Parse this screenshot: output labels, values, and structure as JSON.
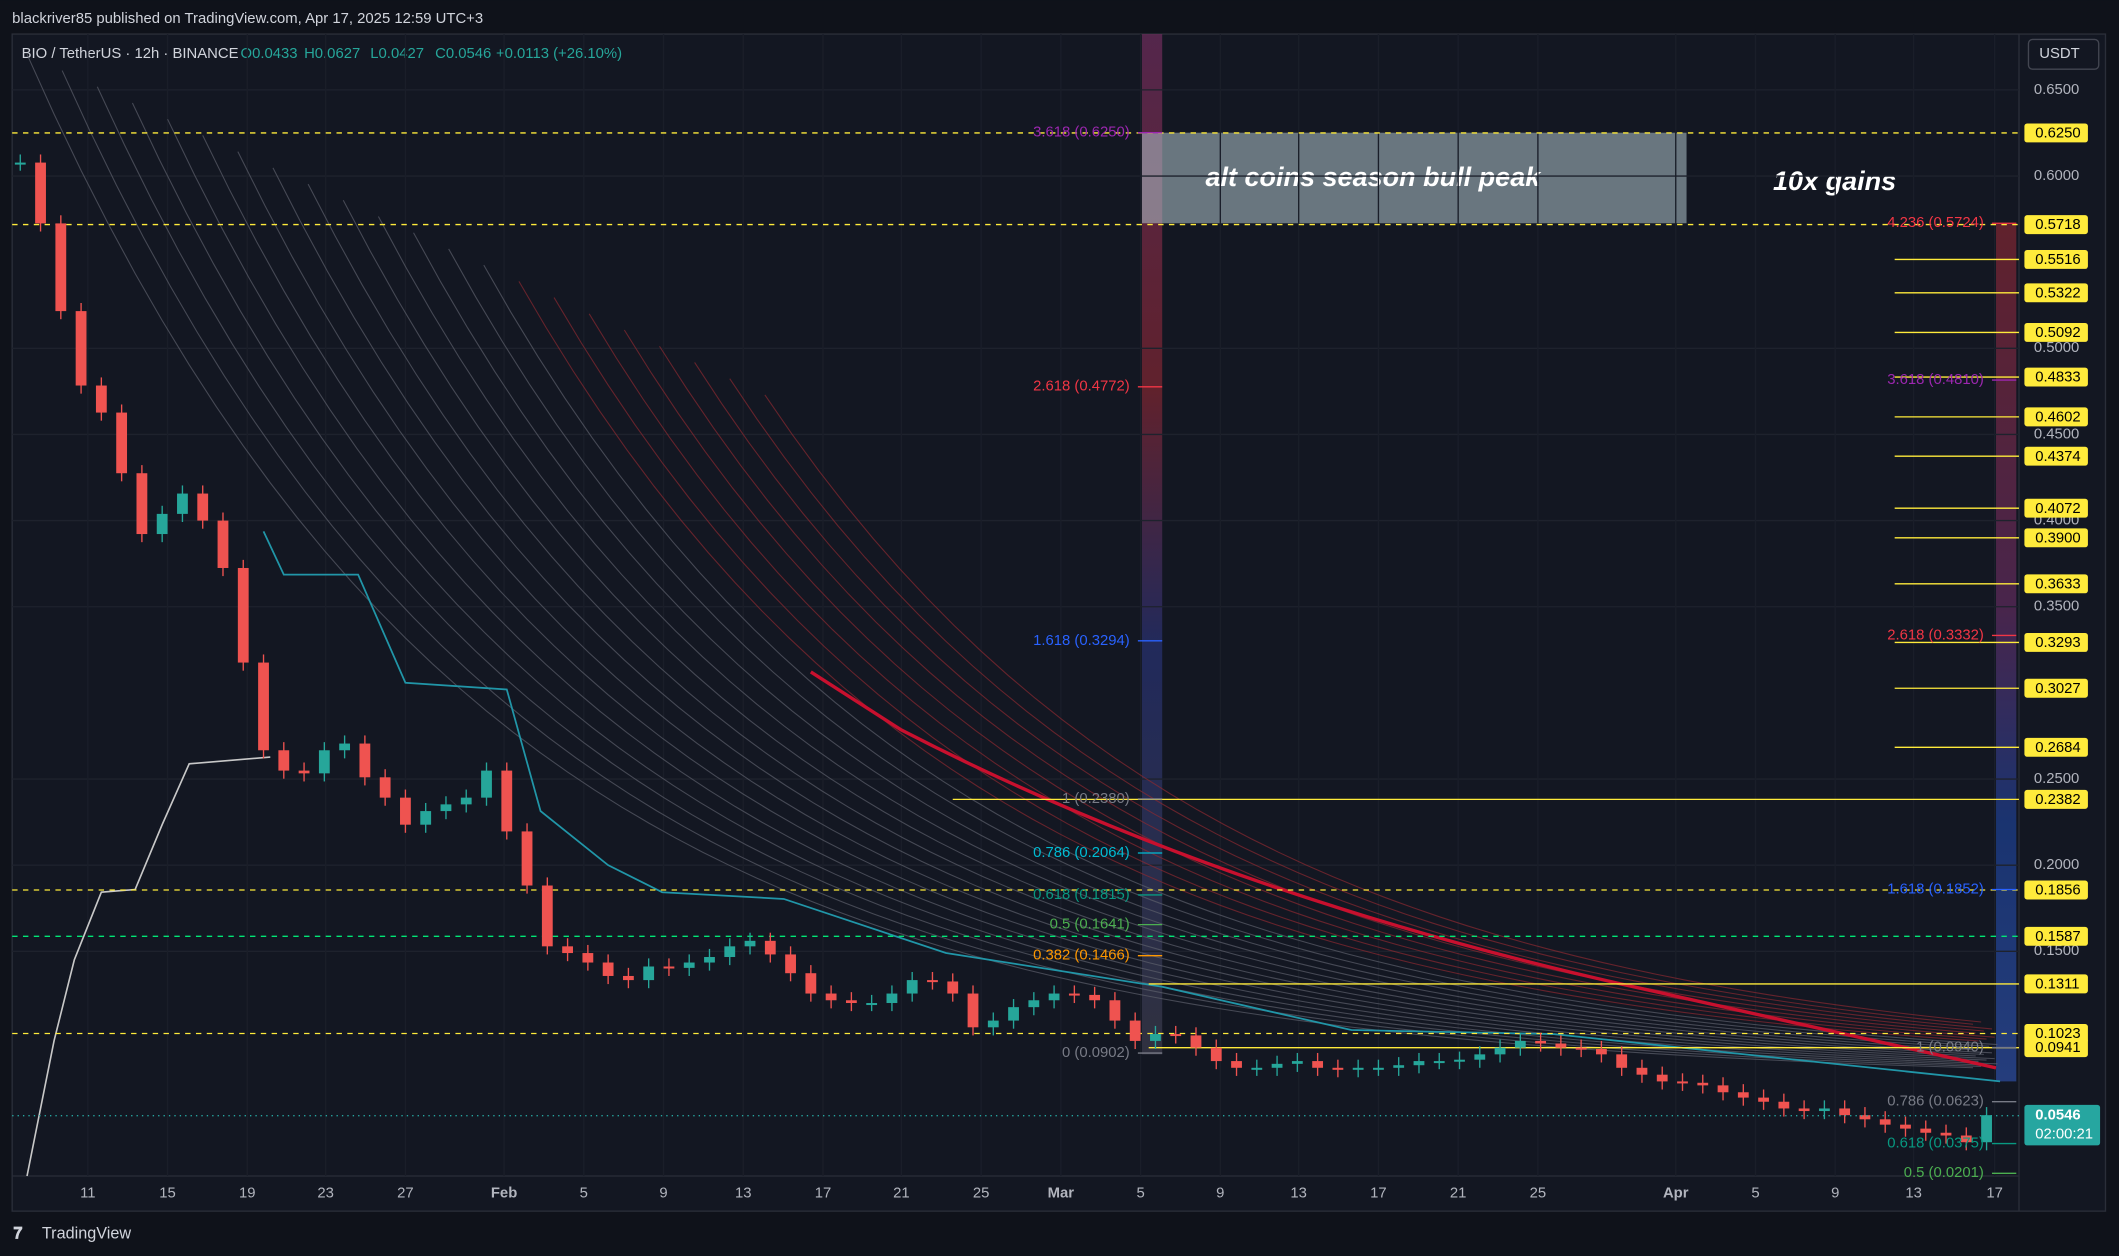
{
  "header": {
    "published": "blackriver85 published on TradingView.com, Apr 17, 2025 12:59 UTC+3",
    "symbol": "BIO / TetherUS · 12h · BINANCE",
    "ohlc": [
      "O0.0433",
      "H0.0627",
      "L0.0427",
      "C0.0546",
      "+0.0113 (+26.10%)"
    ],
    "currency": "USDT"
  },
  "footer": {
    "brand": "TradingView"
  },
  "chart_data": {
    "type": "candlestick",
    "ylim": [
      0.0196,
      0.6824
    ],
    "yticks": [
      {
        "value": 0.65,
        "label": "0.6500"
      },
      {
        "value": 0.6,
        "label": "0.6000"
      },
      {
        "value": 0.5,
        "label": "0.5000"
      },
      {
        "value": 0.45,
        "label": "0.4500"
      },
      {
        "value": 0.4,
        "label": "0.4000"
      },
      {
        "value": 0.35,
        "label": "0.3500"
      },
      {
        "value": 0.25,
        "label": "0.2500"
      },
      {
        "value": 0.2,
        "label": "0.2000"
      },
      {
        "value": 0.15,
        "label": "0.1500"
      }
    ],
    "categories": [
      "11",
      "15",
      "19",
      "23",
      "27",
      "Feb",
      "5",
      "9",
      "13",
      "17",
      "21",
      "25",
      "Mar",
      "5",
      "9",
      "13",
      "17",
      "21",
      "25",
      "Apr",
      "5",
      "9",
      "13",
      "17"
    ],
    "closes": [
      0.6078,
      0.5725,
      0.5216,
      0.4784,
      0.4627,
      0.4275,
      0.3922,
      0.4039,
      0.4157,
      0.4,
      0.3725,
      0.3176,
      0.2667,
      0.2549,
      0.2533,
      0.2667,
      0.2706,
      0.251,
      0.2392,
      0.2235,
      0.2314,
      0.2353,
      0.2392,
      0.2549,
      0.2196,
      0.1882,
      0.1529,
      0.149,
      0.1435,
      0.1357,
      0.1333,
      0.1412,
      0.1404,
      0.1435,
      0.1467,
      0.1529,
      0.1561,
      0.1482,
      0.1373,
      0.1255,
      0.1216,
      0.12,
      0.12,
      0.1255,
      0.1333,
      0.1325,
      0.1255,
      0.1059,
      0.1098,
      0.1176,
      0.1216,
      0.1255,
      0.1247,
      0.1216,
      0.1098,
      0.098,
      0.102,
      0.1012,
      0.0941,
      0.0863,
      0.0824,
      0.0824,
      0.0847,
      0.0863,
      0.0824,
      0.0816,
      0.0824,
      0.0824,
      0.0839,
      0.0863,
      0.0863,
      0.0871,
      0.0902,
      0.0941,
      0.098,
      0.0965,
      0.0941,
      0.0933,
      0.0902,
      0.0824,
      0.0784,
      0.0745,
      0.0737,
      0.0722,
      0.0682,
      0.0651,
      0.0627,
      0.0588,
      0.0573,
      0.0588,
      0.0549,
      0.0525,
      0.0494,
      0.0471,
      0.0447,
      0.0431,
      0.0392,
      0.0549
    ],
    "up_color": "#26a69a",
    "down_color": "#ef5350",
    "levels": [
      {
        "value": 0.625,
        "label": "0.6250",
        "style": "dashed"
      },
      {
        "value": 0.5718,
        "label": "0.5718",
        "style": "dashed"
      },
      {
        "value": 0.5516,
        "label": "0.5516",
        "style": "short"
      },
      {
        "value": 0.5322,
        "label": "0.5322",
        "style": "short"
      },
      {
        "value": 0.5092,
        "label": "0.5092",
        "style": "short"
      },
      {
        "value": 0.4833,
        "label": "0.4833",
        "style": "short"
      },
      {
        "value": 0.4602,
        "label": "0.4602",
        "style": "short"
      },
      {
        "value": 0.4374,
        "label": "0.4374",
        "style": "short"
      },
      {
        "value": 0.4072,
        "label": "0.4072",
        "style": "short"
      },
      {
        "value": 0.39,
        "label": "0.3900",
        "style": "short"
      },
      {
        "value": 0.3633,
        "label": "0.3633",
        "style": "short"
      },
      {
        "value": 0.3293,
        "label": "0.3293",
        "style": "short"
      },
      {
        "value": 0.3027,
        "label": "0.3027",
        "style": "short"
      },
      {
        "value": 0.2684,
        "label": "0.2684",
        "style": "short"
      },
      {
        "value": 0.2382,
        "label": "0.2382",
        "style": "solid"
      },
      {
        "value": 0.1856,
        "label": "0.1856",
        "style": "dashed"
      },
      {
        "value": 0.1587,
        "label": "0.1587",
        "style": "green"
      },
      {
        "value": 0.1311,
        "label": "0.1311",
        "style": "solid"
      },
      {
        "value": 0.1023,
        "label": "0.1023",
        "style": "dashed"
      },
      {
        "value": 0.0941,
        "label": "0.0941",
        "style": "solid"
      }
    ],
    "level_color": "#ffeb3b",
    "last_price": {
      "value": 0.0546,
      "label": "0.0546",
      "countdown": "02:00:21",
      "color": "#26a6a0"
    },
    "fib_left": [
      {
        "label": "3.618 (0.6250)",
        "color": "#9c27b0"
      },
      {
        "label": "2.618 (0.4772)",
        "color": "#f23645"
      },
      {
        "label": "1.618 (0.3294)",
        "color": "#2962ff"
      },
      {
        "label": "1 (0.2380)",
        "color": "#787b86"
      },
      {
        "label": "0.786 (0.2064)",
        "color": "#00bcd4"
      },
      {
        "label": "0.618 (0.1815)",
        "color": "#089981"
      },
      {
        "label": "0.5 (0.1641)",
        "color": "#4caf50"
      },
      {
        "label": "0.382 (0.1466)",
        "color": "#ff9800"
      },
      {
        "label": "0 (0.0902)",
        "color": "#787b86"
      }
    ],
    "fib_right": [
      {
        "label": "4.236 (0.5724)",
        "color": "#f23645"
      },
      {
        "label": "3.618 (0.4810)",
        "color": "#9c27b0"
      },
      {
        "label": "2.618 (0.3332)",
        "color": "#f23645"
      },
      {
        "label": "1.618 (0.1852)",
        "color": "#2962ff"
      },
      {
        "label": "1 (0.0940)",
        "color": "#787b86"
      },
      {
        "label": "0.786 (0.0623)",
        "color": "#787b86"
      },
      {
        "label": "0.618 (0.0375)",
        "color": "#089981"
      },
      {
        "label": "0.5 (0.0201)",
        "color": "#4caf50"
      }
    ],
    "annotations": [
      "alt coins season bull peak",
      "10x gains"
    ]
  }
}
